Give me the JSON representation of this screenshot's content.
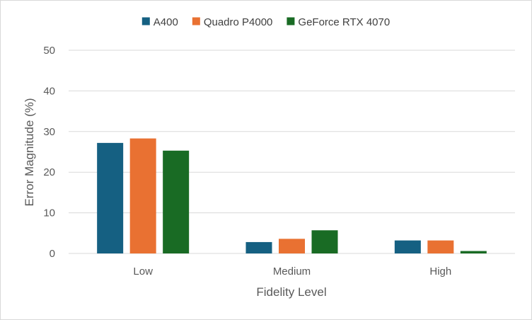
{
  "chart_data": {
    "type": "bar",
    "categories": [
      "Low",
      "Medium",
      "High"
    ],
    "series": [
      {
        "name": "A400",
        "color": "#156082",
        "values": [
          27.2,
          2.8,
          3.2
        ]
      },
      {
        "name": "Quadro P4000",
        "color": "#E97132",
        "values": [
          28.3,
          3.6,
          3.2
        ]
      },
      {
        "name": "GeForce RTX 4070",
        "color": "#196B24",
        "values": [
          25.3,
          5.7,
          0.6
        ]
      }
    ],
    "xlabel": "Fidelity Level",
    "ylabel": "Error Magnitude (%)",
    "ylim": [
      0,
      50
    ],
    "yticks": [
      0,
      10,
      20,
      30,
      40,
      50
    ],
    "grid": true,
    "legend_position": "top"
  }
}
